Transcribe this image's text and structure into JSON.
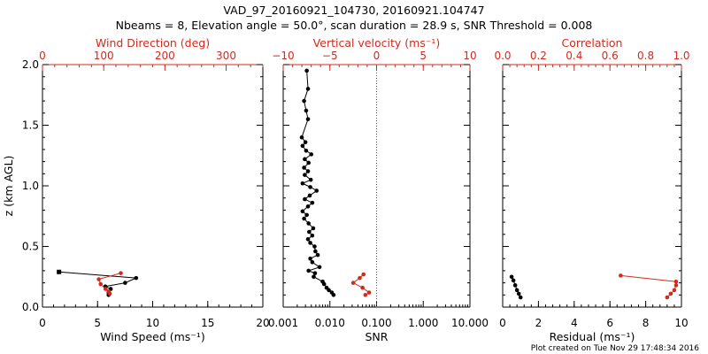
{
  "title": {
    "line1": "VAD_97_20160921_104730, 20160921.104747",
    "line2": "Nbeams = 8, Elevation angle = 50.0°, scan duration = 28.9 s, SNR Threshold = 0.008"
  },
  "footer": "Plot created on Tue Nov 29 17:48:34 2016",
  "colors": {
    "primary": "#000000",
    "secondary": "#d32a1e"
  },
  "chart_data": [
    {
      "type": "line",
      "panel": "wind",
      "ylabel": "z (km AGL)",
      "ylim": [
        0,
        2.0
      ],
      "yticks": [
        "0.0",
        "0.5",
        "1.0",
        "1.5",
        "2.0"
      ],
      "bottom_axis": {
        "label": "Wind Speed (ms⁻¹)",
        "range": [
          0,
          20
        ],
        "ticks": [
          "0",
          "5",
          "10",
          "15",
          "20"
        ]
      },
      "top_axis": {
        "label": "Wind Direction (deg)",
        "range": [
          0,
          360
        ],
        "ticks": [
          "0",
          "100",
          "200",
          "300"
        ]
      },
      "series": [
        {
          "axis": "bottom",
          "color": "#000000",
          "marker": "circle",
          "x": [
            6.0,
            6.0,
            6.2,
            5.7,
            7.5,
            8.5,
            1.5
          ],
          "y": [
            0.1,
            0.12,
            0.15,
            0.17,
            0.2,
            0.24,
            0.29
          ]
        },
        {
          "axis": "bottom",
          "color": "#000000",
          "marker": "square",
          "x": [
            1.5
          ],
          "y": [
            0.29
          ]
        },
        {
          "axis": "top",
          "color": "#d32a1e",
          "marker": "circle",
          "x": [
            110,
            108,
            103,
            95,
            92,
            128
          ],
          "y": [
            0.11,
            0.13,
            0.15,
            0.19,
            0.23,
            0.28
          ]
        }
      ]
    },
    {
      "type": "line",
      "panel": "snr",
      "ylim": [
        0,
        2.0
      ],
      "bottom_axis": {
        "label": "SNR",
        "scale": "log",
        "range": [
          0.001,
          10
        ],
        "ticks": [
          "0.001",
          "0.010",
          "0.100",
          "1.000",
          "10.000"
        ]
      },
      "top_axis": {
        "label": "Vertical velocity (ms⁻¹)",
        "range": [
          -10,
          10
        ],
        "ticks": [
          "−10",
          "−5",
          "0",
          "5",
          "10"
        ],
        "reference_line": 0
      },
      "series": [
        {
          "axis": "bottom",
          "color": "#000000",
          "marker": "circle",
          "x": [
            0.012,
            0.011,
            0.0095,
            0.0085,
            0.0075,
            0.007,
            0.0045,
            0.0048,
            0.0035,
            0.006,
            0.0042,
            0.0038,
            0.0055,
            0.0049,
            0.0047,
            0.0038,
            0.0034,
            0.0042,
            0.0036,
            0.0044,
            0.0035,
            0.0028,
            0.0032,
            0.0026,
            0.0034,
            0.0042,
            0.0029,
            0.0037,
            0.0052,
            0.0038,
            0.0026,
            0.0039,
            0.0029,
            0.0034,
            0.0028,
            0.0035,
            0.0029,
            0.004,
            0.0031,
            0.0026,
            0.003,
            0.0025,
            0.0034,
            0.0031,
            0.0028,
            0.0034,
            0.0032
          ],
          "y": [
            0.1,
            0.12,
            0.14,
            0.16,
            0.19,
            0.21,
            0.25,
            0.28,
            0.3,
            0.33,
            0.37,
            0.4,
            0.43,
            0.46,
            0.5,
            0.53,
            0.56,
            0.59,
            0.62,
            0.65,
            0.69,
            0.73,
            0.76,
            0.79,
            0.83,
            0.86,
            0.89,
            0.92,
            0.96,
            0.99,
            1.02,
            1.05,
            1.09,
            1.12,
            1.15,
            1.19,
            1.22,
            1.26,
            1.29,
            1.33,
            1.36,
            1.4,
            1.55,
            1.62,
            1.7,
            1.8,
            1.95
          ]
        },
        {
          "axis": "top",
          "color": "#d32a1e",
          "marker": "circle",
          "x": [
            -1.2,
            -0.8,
            -1.5,
            -2.5,
            -1.8,
            -1.4
          ],
          "y": [
            0.1,
            0.12,
            0.16,
            0.2,
            0.24,
            0.27
          ]
        }
      ]
    },
    {
      "type": "line",
      "panel": "correlation",
      "ylim": [
        0,
        2.0
      ],
      "bottom_axis": {
        "label": "Residual (ms⁻¹)",
        "range": [
          0,
          10
        ],
        "ticks": [
          "0",
          "2",
          "4",
          "6",
          "8",
          "10"
        ]
      },
      "top_axis": {
        "label": "Correlation",
        "range": [
          0.0,
          1.0
        ],
        "ticks": [
          "0.0",
          "0.2",
          "0.4",
          "0.6",
          "0.8",
          "1.0"
        ]
      },
      "series": [
        {
          "axis": "bottom",
          "color": "#000000",
          "marker": "circle",
          "x": [
            1.0,
            0.9,
            0.8,
            0.7,
            0.6,
            0.5
          ],
          "y": [
            0.08,
            0.11,
            0.14,
            0.18,
            0.22,
            0.25
          ]
        },
        {
          "axis": "top",
          "color": "#d32a1e",
          "marker": "circle",
          "x": [
            0.92,
            0.94,
            0.96,
            0.97,
            0.97,
            0.66
          ],
          "y": [
            0.08,
            0.11,
            0.14,
            0.18,
            0.21,
            0.26
          ]
        }
      ]
    }
  ]
}
